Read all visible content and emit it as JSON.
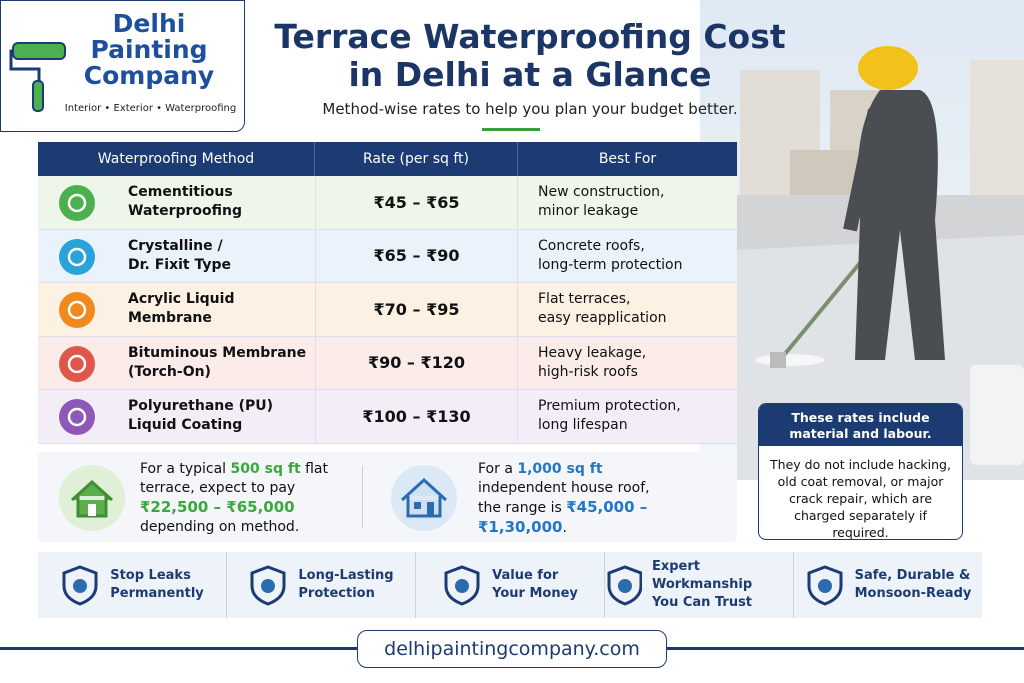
{
  "logo": {
    "name": [
      "Delhi",
      "Painting",
      "Company"
    ],
    "tagline": "Interior • Exterior • Waterproofing"
  },
  "header": {
    "title": [
      "Terrace Waterproofing Cost",
      "in Delhi at a Glance"
    ],
    "subtitle": "Method-wise rates to help you plan your budget better."
  },
  "table": {
    "headers": [
      "Waterproofing Method",
      "Rate (per sq ft)",
      "Best For"
    ],
    "rows": [
      {
        "method": [
          "Cementitious",
          "Waterproofing"
        ],
        "rate": "₹45 – ₹65",
        "best_for": [
          "New construction,",
          "minor leakage"
        ]
      },
      {
        "method": [
          "Crystalline /",
          "Dr. Fixit Type"
        ],
        "rate": "₹65 – ₹90",
        "best_for": [
          "Concrete roofs,",
          "long-term protection"
        ]
      },
      {
        "method": [
          "Acrylic Liquid",
          "Membrane"
        ],
        "rate": "₹70 – ₹95",
        "best_for": [
          "Flat terraces,",
          "easy reapplication"
        ]
      },
      {
        "method": [
          "Bituminous Membrane",
          "(Torch-On)"
        ],
        "rate": "₹90 – ₹120",
        "best_for": [
          "Heavy leakage,",
          "high-risk roofs"
        ]
      },
      {
        "method": [
          "Polyurethane (PU)",
          "Liquid Coating"
        ],
        "rate": "₹100 – ₹130",
        "best_for": [
          "Premium protection,",
          "long lifespan"
        ]
      }
    ]
  },
  "examples": [
    {
      "parts": [
        "For a typical ",
        "500 sq ft",
        " flat terrace, expect to pay ",
        "₹22,500 – ₹65,000",
        " depending on method."
      ]
    },
    {
      "parts": [
        "For a ",
        "1,000 sq ft",
        " independent house roof, the range is ",
        "₹45,000 – ₹1,30,000",
        "."
      ]
    }
  ],
  "note": {
    "title": "These rates include material and labour.",
    "body": "They do not include hacking, old coat removal, or major crack repair, which are charged separately if required."
  },
  "features": [
    [
      "Stop Leaks",
      "Permanently"
    ],
    [
      "Long-Lasting",
      "Protection"
    ],
    [
      "Value for",
      "Your Money"
    ],
    [
      "Expert Workmanship",
      "You Can Trust"
    ],
    [
      "Safe, Durable &",
      "Monsoon-Ready"
    ]
  ],
  "footer": {
    "url": "delhipaintingcompany.com"
  }
}
